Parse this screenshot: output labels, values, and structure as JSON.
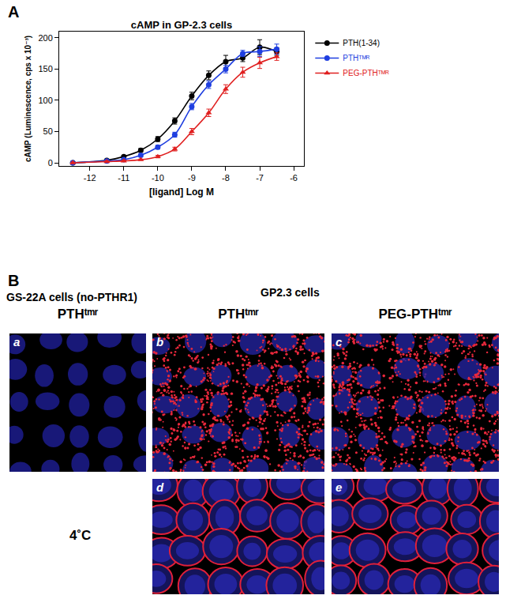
{
  "chart_data": {
    "type": "line",
    "title": "cAMP in GP-2.3 cells",
    "x_label": "[ligand] Log M",
    "y_label": "cAMP (Luminescence, cps x 10⁻³)",
    "x": [
      -12.5,
      -11.5,
      -11,
      -10.5,
      -10,
      -9.5,
      -9,
      -8.5,
      -8,
      -7.5,
      -7,
      -6.5
    ],
    "series": [
      {
        "name": "PTH(1-34)",
        "color": "#000000",
        "marker": "circle",
        "values": [
          0,
          4,
          10,
          20,
          38,
          67,
          107,
          140,
          162,
          168,
          185,
          178
        ],
        "errors": [
          1,
          1,
          2,
          3,
          4,
          5,
          6,
          7,
          10,
          6,
          12,
          6
        ]
      },
      {
        "name": "PTHᵀᴹᴿ",
        "color": "#1f3fe0",
        "marker": "circle",
        "values": [
          0,
          3,
          5,
          12,
          25,
          45,
          90,
          125,
          150,
          175,
          178,
          182
        ],
        "errors": [
          1,
          1,
          1,
          2,
          3,
          4,
          5,
          6,
          6,
          5,
          8,
          8
        ]
      },
      {
        "name": "PEG-PTHᵀᴹᴿ",
        "color": "#e02020",
        "marker": "triangle-up",
        "values": [
          0,
          2,
          3,
          5,
          10,
          22,
          50,
          80,
          118,
          145,
          160,
          170
        ],
        "errors": [
          1,
          1,
          1,
          1,
          2,
          3,
          5,
          6,
          7,
          8,
          9,
          6
        ]
      }
    ],
    "line_style": "spline",
    "xlim": [
      -12.9,
      -5.7
    ],
    "ylim": [
      -5,
      210
    ],
    "xticks": [
      -12,
      -11,
      -10,
      -9,
      -8,
      -7,
      -6
    ],
    "yticks": [
      0,
      50,
      100,
      150,
      200
    ],
    "grid": false,
    "legend": "upper right"
  },
  "figure": {
    "panel_labels": [
      "A",
      "B"
    ],
    "panel_b": {
      "left_header": "GS-22A cells (no-PTHR1)",
      "right_header": "GP2.3 cells",
      "row_label": "4˚C",
      "images": [
        {
          "label": "a",
          "title": "PTHᵗᵐʳ"
        },
        {
          "label": "b",
          "title": "PTHᵗᵐʳ"
        },
        {
          "label": "c",
          "title": "PEG-PTHᵗᵐʳ"
        },
        {
          "label": "d"
        },
        {
          "label": "e"
        }
      ]
    }
  }
}
